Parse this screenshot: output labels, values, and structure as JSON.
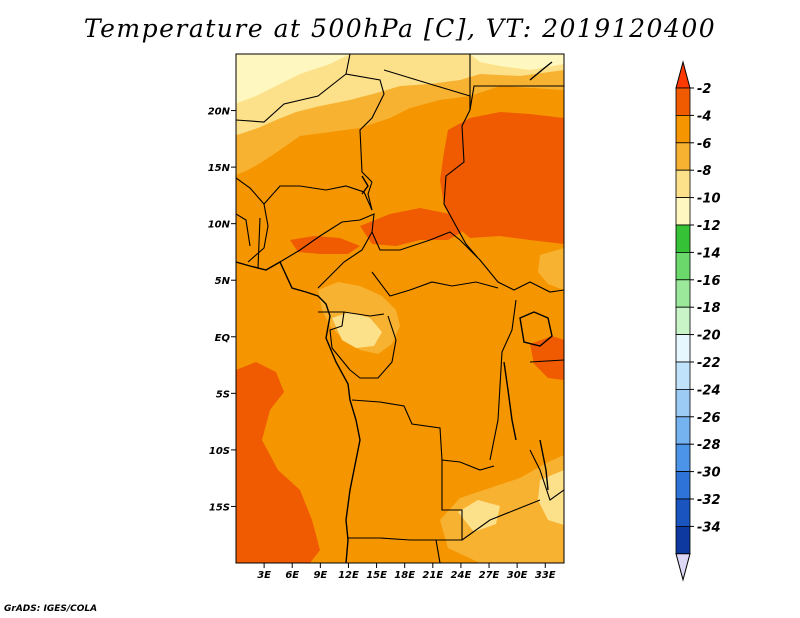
{
  "title": "Temperature at 500hPa [C], VT: 2019120400",
  "credit": "GrADS: IGES/COLA",
  "map": {
    "lon_range": [
      0,
      35
    ],
    "lat_range": [
      -20,
      25
    ],
    "x_ticks": [
      {
        "lon": 3,
        "label": "3E"
      },
      {
        "lon": 6,
        "label": "6E"
      },
      {
        "lon": 9,
        "label": "9E"
      },
      {
        "lon": 12,
        "label": "12E"
      },
      {
        "lon": 15,
        "label": "15E"
      },
      {
        "lon": 18,
        "label": "18E"
      },
      {
        "lon": 21,
        "label": "21E"
      },
      {
        "lon": 24,
        "label": "24E"
      },
      {
        "lon": 27,
        "label": "27E"
      },
      {
        "lon": 30,
        "label": "30E"
      },
      {
        "lon": 33,
        "label": "33E"
      }
    ],
    "y_ticks": [
      {
        "lat": 20,
        "label": "20N"
      },
      {
        "lat": 15,
        "label": "15N"
      },
      {
        "lat": 10,
        "label": "10N"
      },
      {
        "lat": 5,
        "label": "5N"
      },
      {
        "lat": 0,
        "label": "EQ"
      },
      {
        "lat": -5,
        "label": "5S"
      },
      {
        "lat": -10,
        "label": "10S"
      },
      {
        "lat": -15,
        "label": "15S"
      }
    ]
  },
  "colorbar": {
    "levels": [
      "-2",
      "-4",
      "-6",
      "-8",
      "-10",
      "-12",
      "-14",
      "-16",
      "-18",
      "-20",
      "-22",
      "-24",
      "-26",
      "-28",
      "-30",
      "-32",
      "-34"
    ],
    "colors": [
      "#f05a00",
      "#f59600",
      "#f8b232",
      "#fde18a",
      "#fef8c0",
      "#36c236",
      "#6ad86a",
      "#9be89b",
      "#c8f4c8",
      "#e6f7ff",
      "#c0e2fa",
      "#9ccbf5",
      "#74b2f0",
      "#4b94e8",
      "#2e74d8",
      "#1a55bf",
      "#0e3aa0"
    ],
    "top_arrow_color": "#ff3a00",
    "bottom_arrow_color": "#dcd8f5"
  },
  "field_colors": {
    "base": "#f59600",
    "warm": "#f05a00",
    "cool": "#f8b232",
    "cooler": "#fde18a",
    "coolest": "#fef8c0"
  }
}
